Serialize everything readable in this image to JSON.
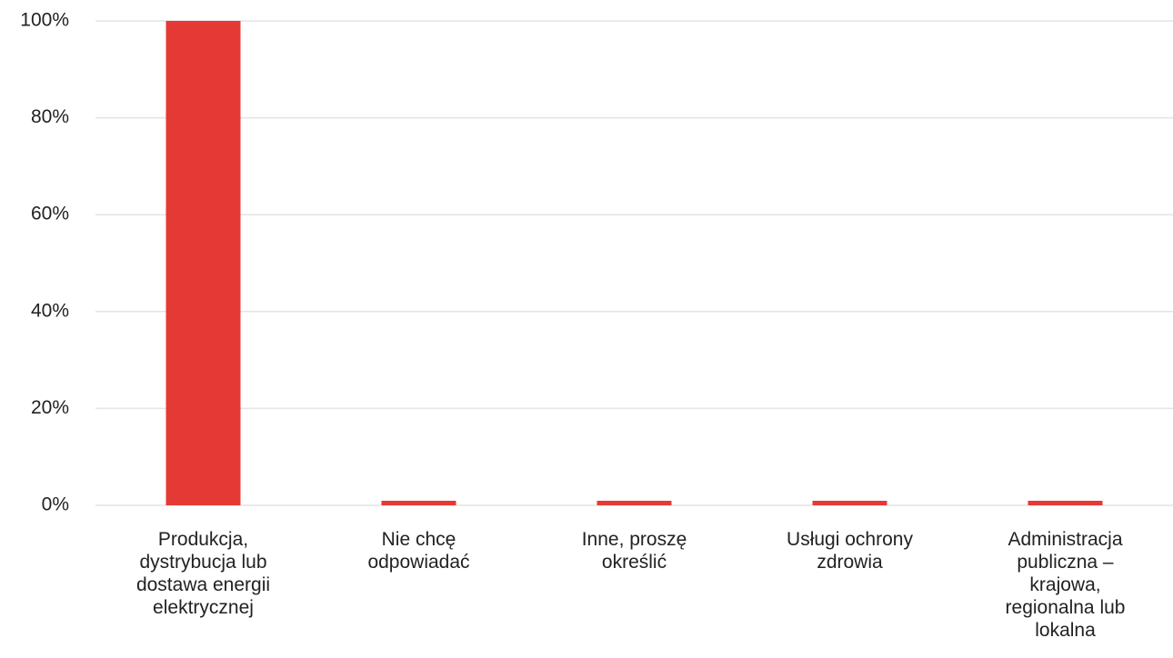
{
  "chart_data": {
    "type": "bar",
    "categories": [
      "Produkcja, dystrybucja lub dostawa energii elektrycznej",
      "Nie chcę odpowiadać",
      "Inne, proszę określić",
      "Usługi ochrony zdrowia",
      "Administracja publiczna – krajowa, regionalna lub lokalna"
    ],
    "values": [
      100,
      0,
      0,
      0,
      0
    ],
    "color": "#e53935",
    "ylim": [
      0,
      100
    ],
    "yticks": [
      {
        "value": 0,
        "label": "0%"
      },
      {
        "value": 20,
        "label": "20%"
      },
      {
        "value": 40,
        "label": "40%"
      },
      {
        "value": 60,
        "label": "60%"
      },
      {
        "value": 80,
        "label": "80%"
      },
      {
        "value": 100,
        "label": "100%"
      }
    ],
    "grid": true
  }
}
